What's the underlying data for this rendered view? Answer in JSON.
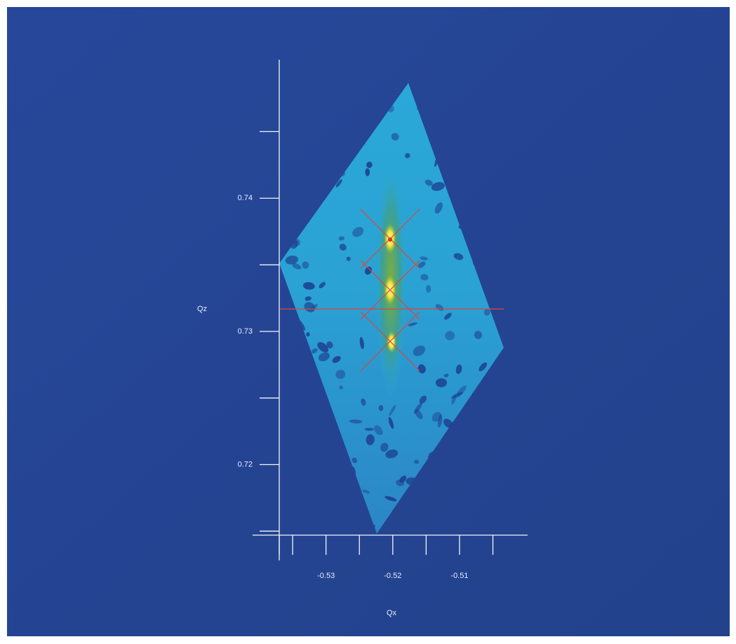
{
  "chart_data": {
    "type": "map",
    "xlabel": "Qx",
    "ylabel": "Qz",
    "xlim": [
      -0.541,
      -0.4998
    ],
    "ylim": [
      0.7147,
      0.7504
    ],
    "xticks": [
      {
        "value": -0.537,
        "label": null
      },
      {
        "value": -0.535,
        "label": null
      },
      -0.53,
      {
        "value": -0.525,
        "label": null
      },
      -0.52,
      {
        "value": -0.515,
        "label": null
      },
      -0.51,
      {
        "value": -0.505,
        "label": null
      }
    ],
    "yticks": [
      {
        "value": 0.715,
        "label": null
      },
      0.72,
      {
        "value": 0.725,
        "label": null
      },
      0.73,
      {
        "value": 0.735,
        "label": null
      },
      0.74,
      {
        "value": 0.745,
        "label": null
      }
    ]
  }
}
